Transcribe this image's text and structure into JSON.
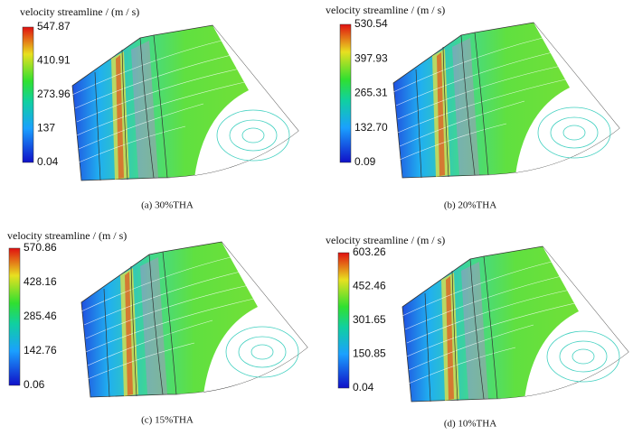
{
  "panels": [
    {
      "colorbar_title": "velocity streamline / (m / s)",
      "ticks": [
        "547.87",
        "410.91",
        "273.96",
        "137",
        "0.04"
      ],
      "caption": "(a) 30%THA"
    },
    {
      "colorbar_title": "velocity streamline / (m / s)",
      "ticks": [
        "530.54",
        "397.93",
        "265.31",
        "132.70",
        "0.09"
      ],
      "caption": "(b) 20%THA"
    },
    {
      "colorbar_title": "velocity streamline / (m / s)",
      "ticks": [
        "570.86",
        "428.16",
        "285.46",
        "142.76",
        "0.06"
      ],
      "caption": "(c) 15%THA"
    },
    {
      "colorbar_title": "velocity streamline / (m / s)",
      "ticks": [
        "603.26",
        "452.46",
        "301.65",
        "150.85",
        "0.04"
      ],
      "caption": "(d) 10%THA"
    }
  ]
}
